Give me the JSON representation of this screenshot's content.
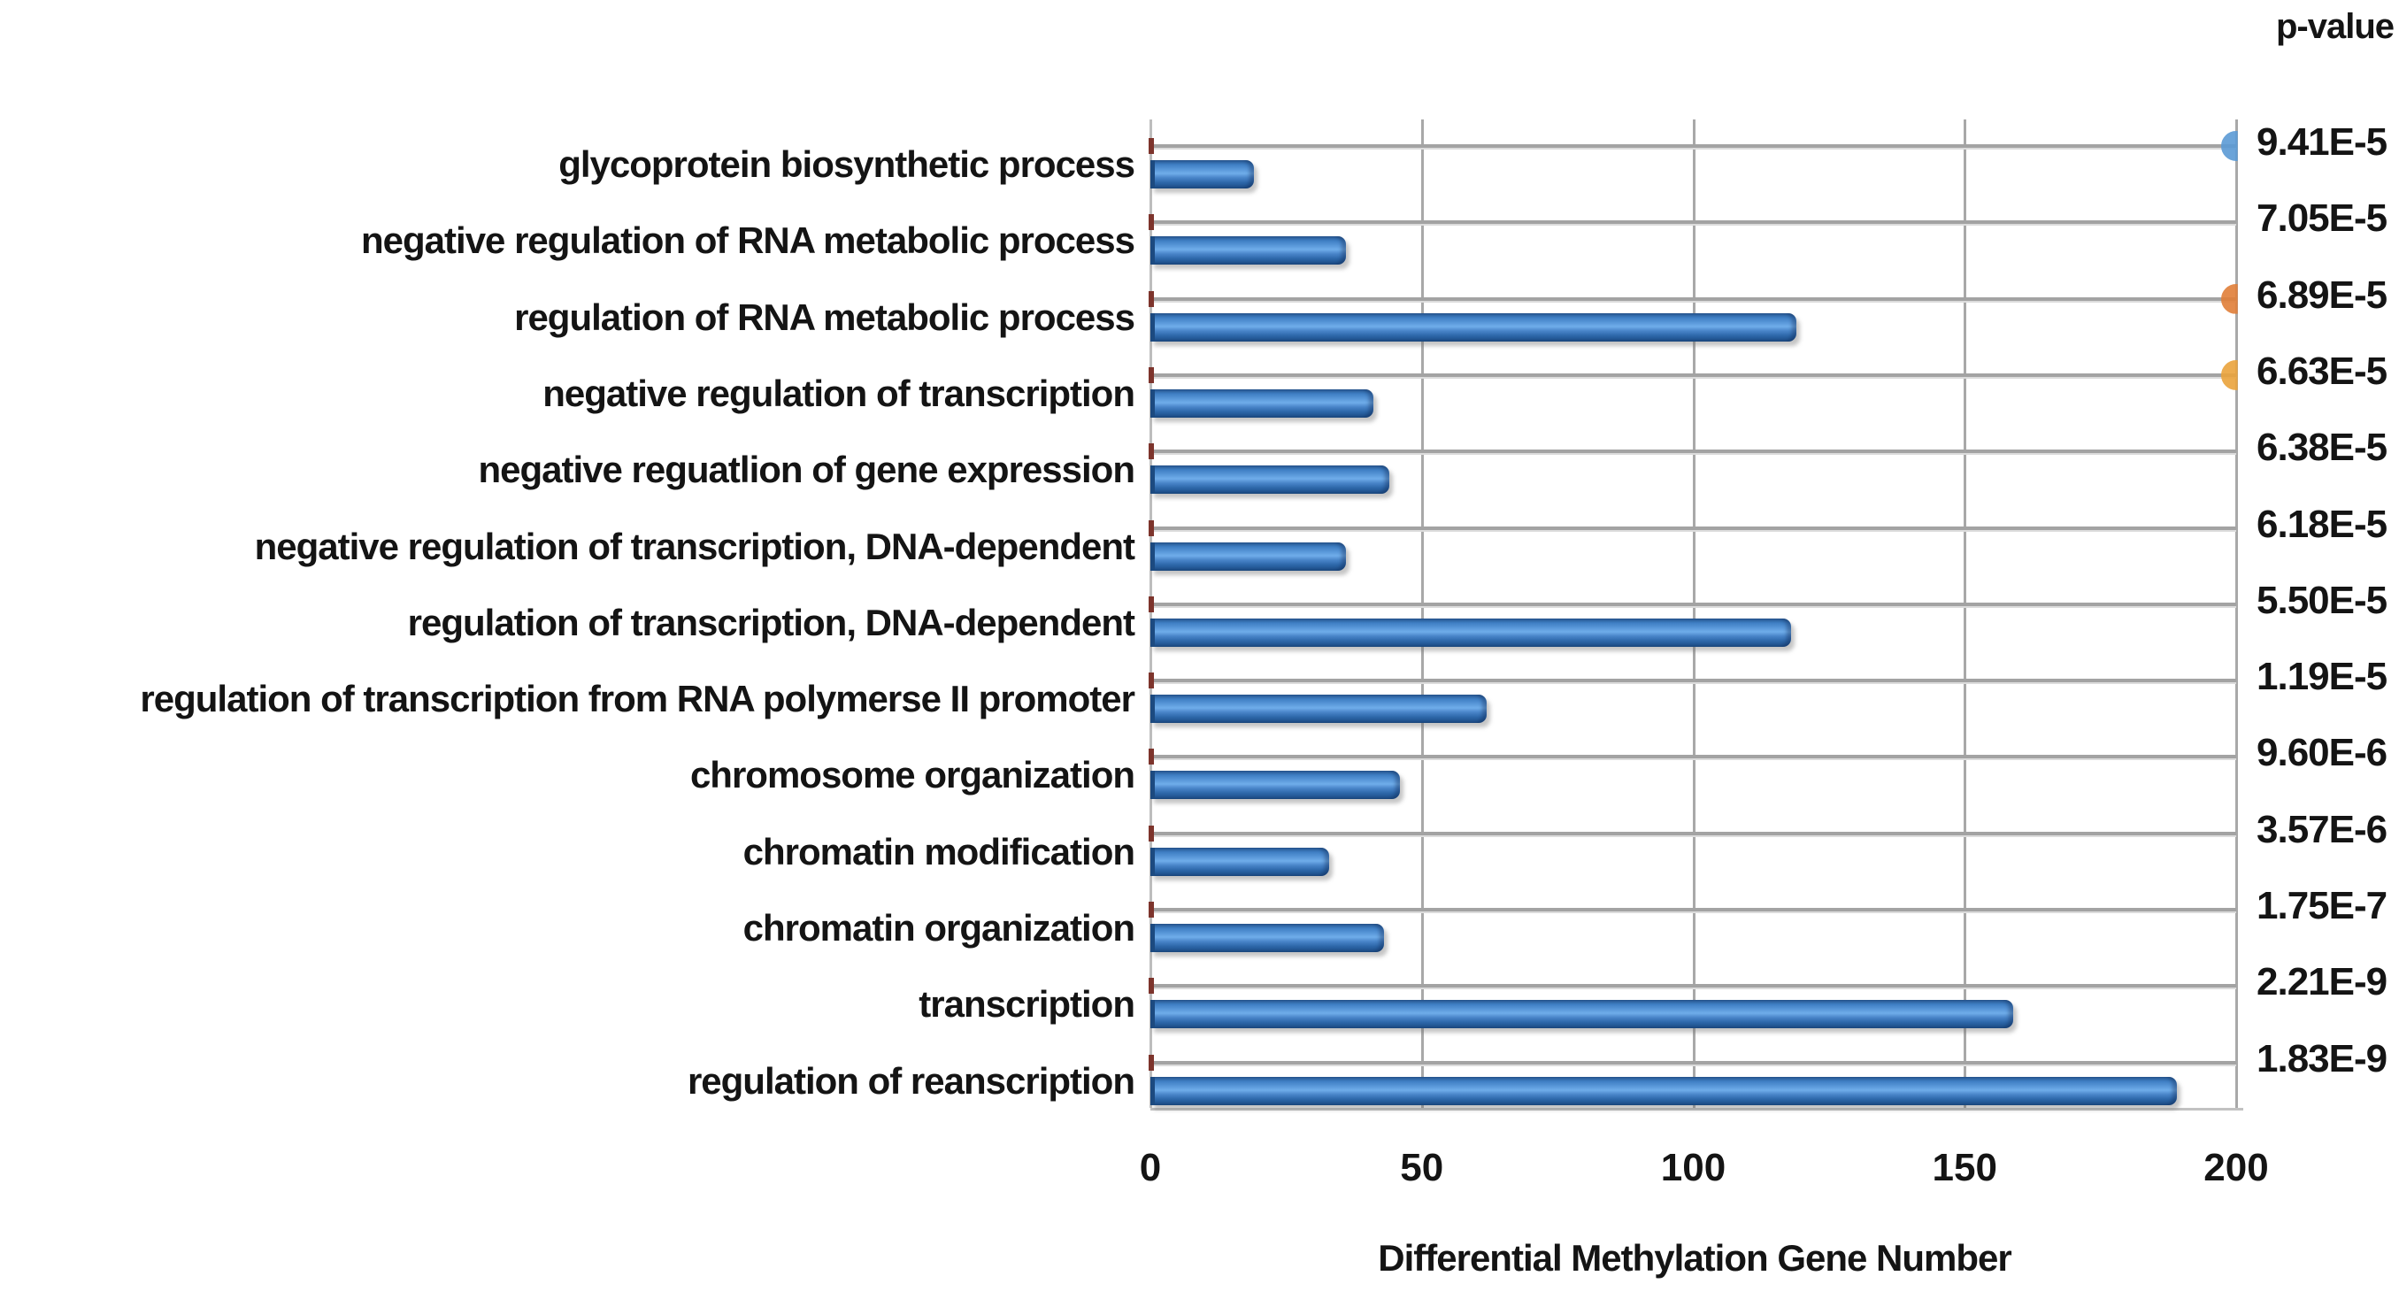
{
  "chart_data": {
    "type": "bar",
    "orientation": "horizontal",
    "title": "",
    "xlabel": "Differential Methylation Gene Number",
    "pvalue_header": "p-value",
    "x_ticks": [
      "0",
      "50",
      "100",
      "150",
      "200"
    ],
    "xlim": [
      0,
      200
    ],
    "grid": true,
    "legend": "none",
    "bar_color_main": "#3f7fc4",
    "categories": [
      "glycoprotein biosynthetic process",
      "negative regulation of RNA metabolic process",
      "regulation of RNA metabolic process",
      "negative regulation of transcription",
      "negative reguatlion of gene expression",
      "negative regulation of transcription, DNA-dependent",
      "regulation of transcription, DNA-dependent",
      "regulation of transcription from RNA polymerse II promoter",
      "chromosome organization",
      "chromatin modification",
      "chromatin organization",
      "transcription",
      "regulation of reanscription"
    ],
    "values": [
      19,
      36,
      119,
      41,
      44,
      36,
      118,
      62,
      46,
      33,
      43,
      159,
      189
    ],
    "p_values": [
      "9.41E-5",
      "7.05E-5",
      "6.89E-5",
      "6.63E-5",
      "6.38E-5",
      "6.18E-5",
      "5.50E-5",
      "1.19E-5",
      "9.60E-6",
      "3.57E-6",
      "1.75E-7",
      "2.21E-9",
      "1.83E-9"
    ],
    "edge_markers": [
      {
        "row": 0,
        "color": "#5b9bd5"
      },
      {
        "row": 2,
        "color": "#e07f39"
      },
      {
        "row": 3,
        "color": "#eaa43c"
      }
    ]
  }
}
